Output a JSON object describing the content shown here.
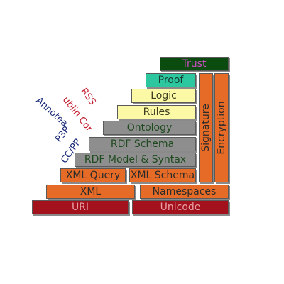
{
  "layers": {
    "uri": "URI",
    "unicode": "Unicode",
    "xml": "XML",
    "namespaces": "Namespaces",
    "xml_query": "XML Query",
    "xml_schema": "XML Schema",
    "rdf_model": "RDF Model & Syntax",
    "rdf_schema": "RDF Schema",
    "ontology": "Ontology",
    "rules": "Rules",
    "logic": "Logic",
    "proof": "Proof",
    "trust": "Trust",
    "signature": "Signature",
    "encryption": "Encryption"
  },
  "side_labels": {
    "rss": "RSS",
    "dublin_core": "ublin Cor",
    "annotea": "Annotea",
    "p3p": "P3P",
    "cc_pp": "CC/PP"
  },
  "colors": {
    "uri_unicode": "#a3111c",
    "xml_layers": "#e66b26",
    "rdf_layers": "#8e8e8e",
    "rules_logic": "#fbf9a6",
    "proof": "#2cc79f",
    "trust": "#0c4b10",
    "side_red": "#c0182a",
    "side_blue": "#1a2a78"
  }
}
